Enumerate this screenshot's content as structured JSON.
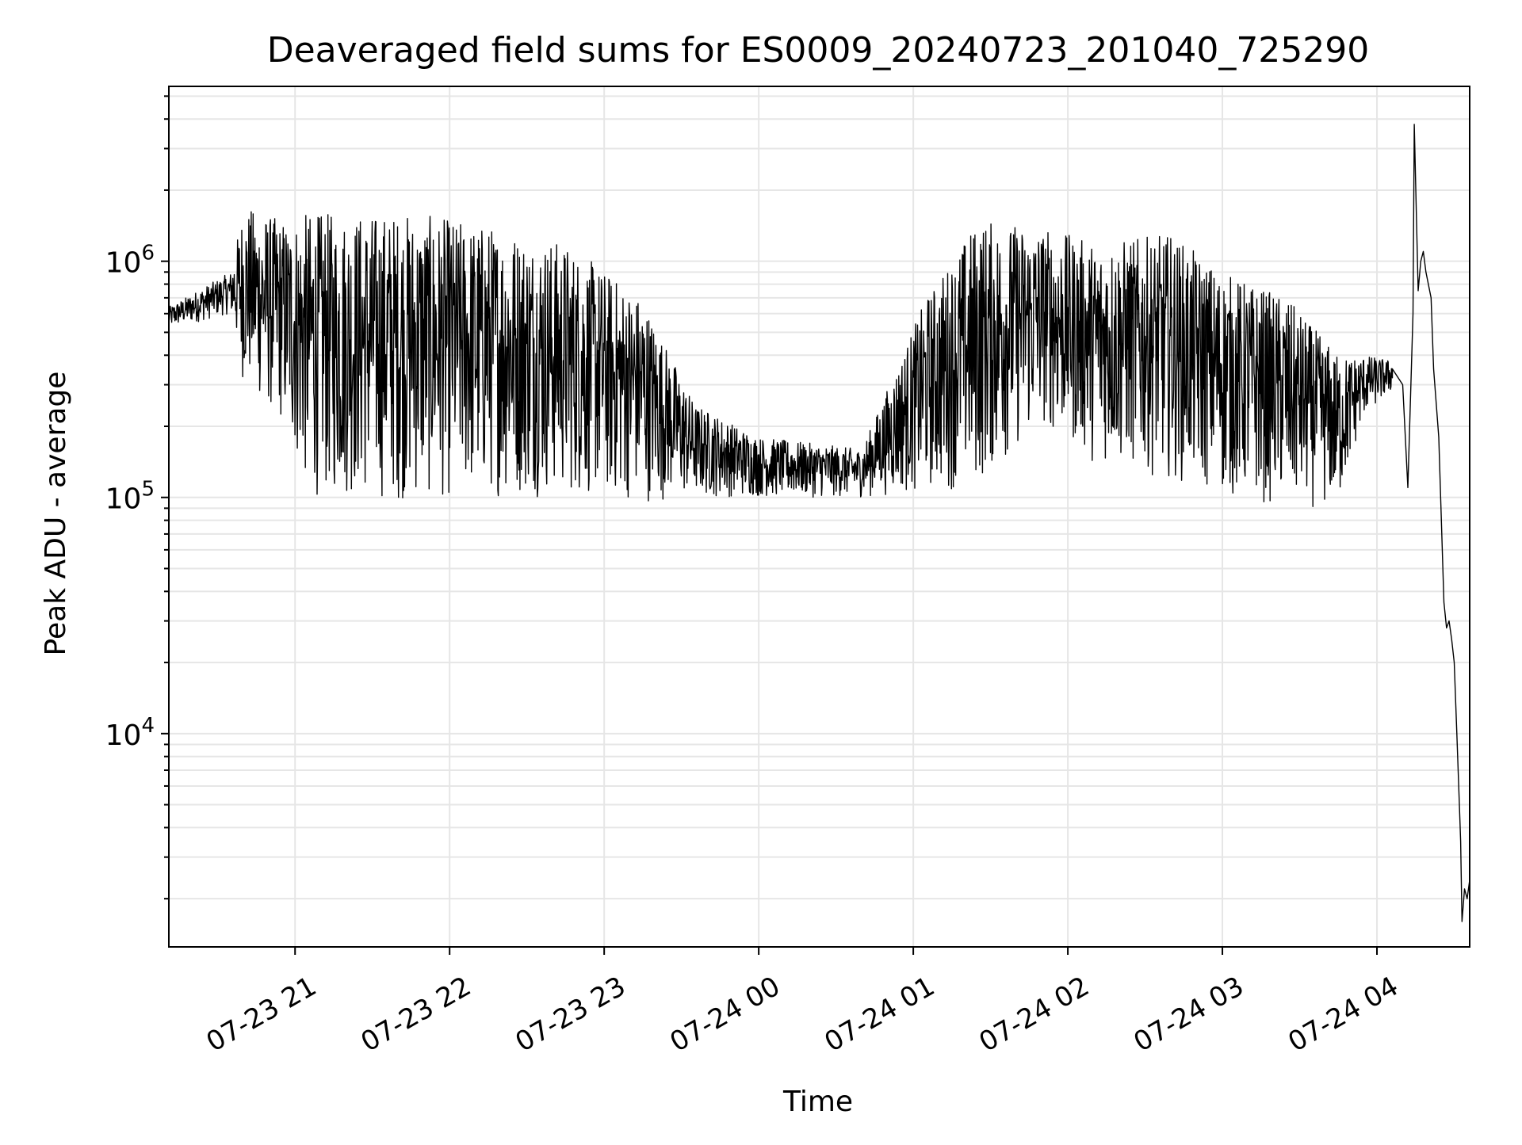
{
  "chart_data": {
    "type": "line",
    "title": "Deaveraged field sums for ES0009_20240723_201040_725290",
    "xlabel": "Time",
    "ylabel": "Peak ADU - average",
    "x_scale": "time",
    "y_scale": "log",
    "xlim": [
      "2024-07-23T20:11",
      "2024-07-24T04:36"
    ],
    "ylim": [
      1250,
      5500000
    ],
    "x_ticks": [
      {
        "value": "2024-07-23T21:00",
        "label": "07-23 21"
      },
      {
        "value": "2024-07-23T22:00",
        "label": "07-23 22"
      },
      {
        "value": "2024-07-23T23:00",
        "label": "07-23 23"
      },
      {
        "value": "2024-07-24T00:00",
        "label": "07-24 00"
      },
      {
        "value": "2024-07-24T01:00",
        "label": "07-24 01"
      },
      {
        "value": "2024-07-24T02:00",
        "label": "07-24 02"
      },
      {
        "value": "2024-07-24T03:00",
        "label": "07-24 03"
      },
      {
        "value": "2024-07-24T04:00",
        "label": "07-24 04"
      }
    ],
    "y_ticks": [
      {
        "value": 10000,
        "label_base": "10",
        "label_exp": "4"
      },
      {
        "value": 100000,
        "label_base": "10",
        "label_exp": "5"
      },
      {
        "value": 1000000,
        "label_base": "10",
        "label_exp": "6"
      }
    ],
    "grid": true,
    "grid_minor": true,
    "legend": "none",
    "line_color": "#000000",
    "grid_color": "#e6e6e6",
    "envelope": {
      "description_of_fields": "per time: typical low / typical high of the oscillating signal",
      "points": [
        {
          "x": "2024-07-23T20:11",
          "low": 520000,
          "high": 640000
        },
        {
          "x": "2024-07-23T20:25",
          "low": 560000,
          "high": 780000
        },
        {
          "x": "2024-07-23T20:35",
          "low": 600000,
          "high": 900000
        },
        {
          "x": "2024-07-23T20:40",
          "low": 300000,
          "high": 1700000
        },
        {
          "x": "2024-07-23T20:55",
          "low": 200000,
          "high": 1500000
        },
        {
          "x": "2024-07-23T21:05",
          "low": 100000,
          "high": 1600000
        },
        {
          "x": "2024-07-23T21:45",
          "low": 95000,
          "high": 1600000
        },
        {
          "x": "2024-07-23T22:20",
          "low": 100000,
          "high": 1400000
        },
        {
          "x": "2024-07-23T22:45",
          "low": 100000,
          "high": 1200000
        },
        {
          "x": "2024-07-23T23:15",
          "low": 95000,
          "high": 700000
        },
        {
          "x": "2024-07-23T23:35",
          "low": 100000,
          "high": 250000
        },
        {
          "x": "2024-07-24T00:00",
          "low": 100000,
          "high": 180000
        },
        {
          "x": "2024-07-24T00:40",
          "low": 100000,
          "high": 160000
        },
        {
          "x": "2024-07-24T01:05",
          "low": 105000,
          "high": 700000
        },
        {
          "x": "2024-07-24T01:25",
          "low": 110000,
          "high": 1500000
        },
        {
          "x": "2024-07-24T01:50",
          "low": 200000,
          "high": 1400000
        },
        {
          "x": "2024-07-24T02:10",
          "low": 140000,
          "high": 1200000
        },
        {
          "x": "2024-07-24T02:40",
          "low": 120000,
          "high": 1300000
        },
        {
          "x": "2024-07-24T03:00",
          "low": 100000,
          "high": 900000
        },
        {
          "x": "2024-07-24T03:25",
          "low": 90000,
          "high": 700000
        },
        {
          "x": "2024-07-24T03:45",
          "low": 90000,
          "high": 400000
        },
        {
          "x": "2024-07-24T03:55",
          "low": 220000,
          "high": 400000
        },
        {
          "x": "2024-07-24T04:06",
          "low": 280000,
          "high": 380000
        }
      ]
    },
    "series": [
      {
        "x": [
          "2024-07-24T04:06",
          "2024-07-24T04:10",
          "2024-07-24T04:12",
          "2024-07-24T04:14",
          "2024-07-24T04:14.5",
          "2024-07-24T04:16",
          "2024-07-24T04:17",
          "2024-07-24T04:18",
          "2024-07-24T04:19",
          "2024-07-24T04:21",
          "2024-07-24T04:22",
          "2024-07-24T04:24",
          "2024-07-24T04:26",
          "2024-07-24T04:27",
          "2024-07-24T04:28",
          "2024-07-24T04:29",
          "2024-07-24T04:30",
          "2024-07-24T04:31",
          "2024-07-24T04:32",
          "2024-07-24T04:32.5",
          "2024-07-24T04:33",
          "2024-07-24T04:34",
          "2024-07-24T04:35",
          "2024-07-24T04:36"
        ],
        "values": [
          350000,
          300000,
          110000,
          600000,
          3800000,
          750000,
          1000000,
          1100000,
          900000,
          700000,
          350000,
          180000,
          36000,
          28000,
          30000,
          25000,
          20000,
          10000,
          5000,
          3500,
          1600,
          2200,
          2000,
          2400
        ]
      }
    ]
  }
}
